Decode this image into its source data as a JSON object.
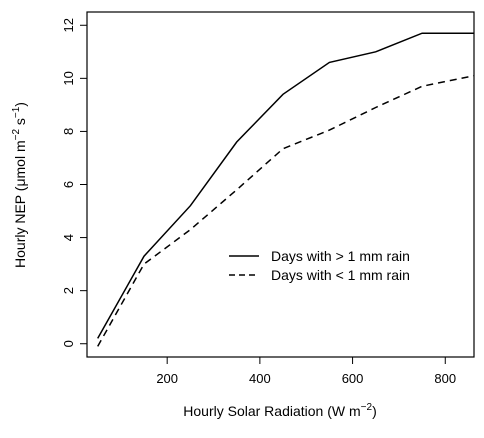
{
  "chart_data": {
    "type": "line",
    "xlabel": "Hourly Solar Radiation (W m",
    "xlabel_sup": "−2",
    "xlabel_close": ")",
    "ylabel": "Hourly NEP (μmol m",
    "ylabel_sup1": "−2",
    "ylabel_mid": " s",
    "ylabel_sup2": "−1",
    "ylabel_close": ")",
    "xlim": [
      27,
      862
    ],
    "ylim": [
      -0.5,
      12.5
    ],
    "xticks": [
      200,
      400,
      600,
      800
    ],
    "yticks": [
      0,
      2,
      4,
      6,
      8,
      10,
      12
    ],
    "grid": false,
    "legend_position": "center-right",
    "series": [
      {
        "name": "Days with > 1 mm rain",
        "dash": "solid",
        "color": "#000000",
        "x": [
          50,
          150,
          250,
          350,
          450,
          550,
          650,
          750,
          862
        ],
        "y": [
          0.2,
          3.3,
          5.2,
          7.6,
          9.4,
          10.6,
          11.0,
          11.7,
          11.7
        ]
      },
      {
        "name": "Days with < 1 mm rain",
        "dash": "dashed",
        "color": "#000000",
        "x": [
          50,
          150,
          250,
          350,
          450,
          550,
          650,
          750,
          862
        ],
        "y": [
          -0.1,
          3.0,
          4.3,
          5.8,
          7.35,
          8.05,
          8.9,
          9.7,
          10.1
        ]
      }
    ]
  }
}
